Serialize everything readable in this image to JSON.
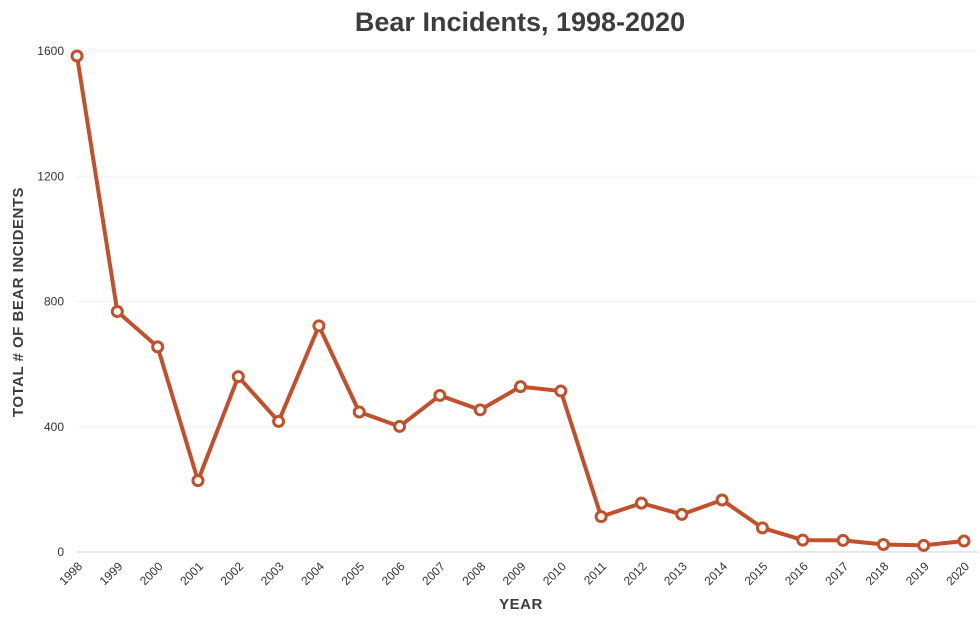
{
  "chart_data": {
    "type": "line",
    "title": "Bear Incidents, 1998-2020",
    "xlabel": "YEAR",
    "ylabel": "TOTAL # OF BEAR INCIDENTS",
    "ylim": [
      0,
      1600
    ],
    "yticks": [
      0,
      400,
      800,
      1200,
      1600
    ],
    "grid": true,
    "x": [
      "1998",
      "1999",
      "2000",
      "2001",
      "2002",
      "2003",
      "2004",
      "2005",
      "2006",
      "2007",
      "2008",
      "2009",
      "2010",
      "2011",
      "2012",
      "2013",
      "2014",
      "2015",
      "2016",
      "2017",
      "2018",
      "2019",
      "2020"
    ],
    "series": [
      {
        "name": "Bear Incidents",
        "color": "#c1502b",
        "values": [
          1584,
          768,
          655,
          228,
          560,
          417,
          722,
          447,
          401,
          500,
          454,
          528,
          514,
          113,
          156,
          120,
          166,
          77,
          38,
          37,
          24,
          21,
          35
        ]
      }
    ]
  }
}
